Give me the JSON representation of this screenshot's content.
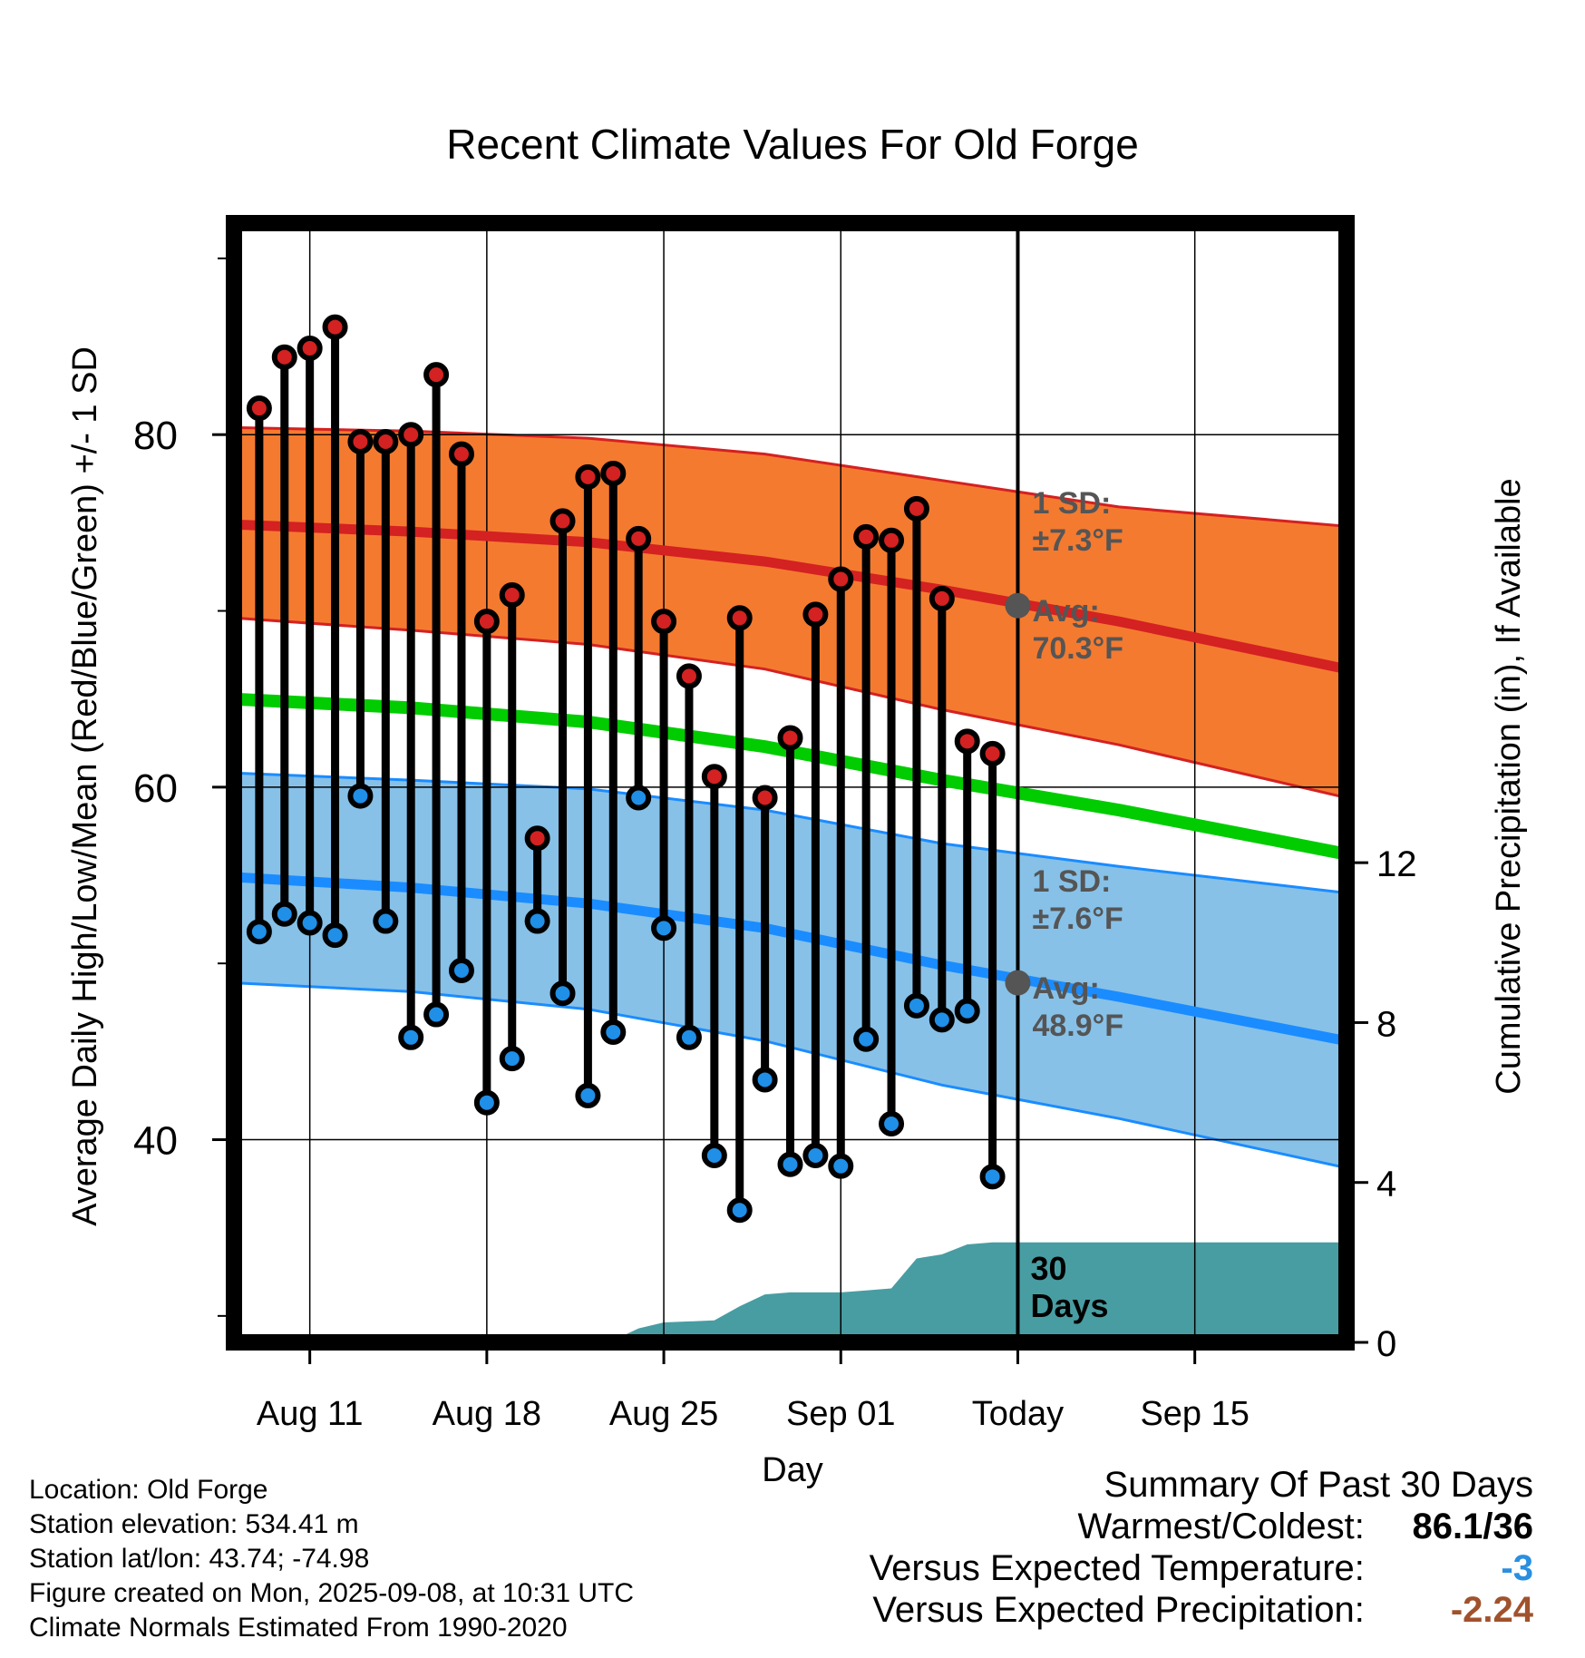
{
  "chart_data": {
    "type": "line",
    "title": "Recent Climate Values For Old Forge",
    "xlabel": "Day",
    "ylabel": "Average Daily High/Low/Mean (Red/Blue/Green) +/- 1 SD",
    "y2label": "Cumulative Precipitation (in), If Available",
    "x_start": "2025-08-08",
    "x_end": "2025-09-21",
    "today": "2025-09-08",
    "ylim": [
      28.5,
      92
    ],
    "y2lim": [
      0,
      28
    ],
    "x_tick_labels": [
      {
        "date": "2025-08-11",
        "label": "Aug 11"
      },
      {
        "date": "2025-08-18",
        "label": "Aug 18"
      },
      {
        "date": "2025-08-25",
        "label": "Aug 25"
      },
      {
        "date": "2025-09-01",
        "label": "Sep 01"
      },
      {
        "date": "2025-09-08",
        "label": "Today"
      },
      {
        "date": "2025-09-15",
        "label": "Sep 15"
      }
    ],
    "y_ticks": [
      40,
      60,
      80
    ],
    "y_minor_ticks": [
      30,
      50,
      70,
      90
    ],
    "y2_ticks": [
      0,
      4,
      8,
      12
    ],
    "grid": true,
    "normals": {
      "x": [
        "2025-08-08",
        "2025-08-15",
        "2025-08-22",
        "2025-08-29",
        "2025-09-05",
        "2025-09-12",
        "2025-09-21"
      ],
      "high_mean": [
        74.9,
        74.5,
        73.9,
        72.8,
        71.2,
        69.4,
        66.7
      ],
      "high_upper": [
        80.4,
        80.2,
        79.8,
        78.9,
        77.4,
        75.9,
        74.8
      ],
      "high_lower": [
        69.6,
        68.9,
        68.1,
        66.7,
        64.4,
        62.4,
        59.4
      ],
      "mean": [
        65.0,
        64.5,
        63.7,
        62.3,
        60.4,
        58.7,
        56.2
      ],
      "low_mean": [
        54.9,
        54.3,
        53.4,
        52.0,
        49.9,
        48.1,
        45.6
      ],
      "low_upper": [
        60.8,
        60.4,
        59.9,
        58.7,
        56.8,
        55.5,
        54.0
      ],
      "low_lower": [
        48.9,
        48.4,
        47.4,
        45.6,
        43.1,
        41.2,
        38.4
      ]
    },
    "observations": {
      "x": [
        "2025-08-09",
        "2025-08-10",
        "2025-08-11",
        "2025-08-12",
        "2025-08-13",
        "2025-08-14",
        "2025-08-15",
        "2025-08-16",
        "2025-08-17",
        "2025-08-18",
        "2025-08-19",
        "2025-08-20",
        "2025-08-21",
        "2025-08-22",
        "2025-08-23",
        "2025-08-24",
        "2025-08-25",
        "2025-08-26",
        "2025-08-27",
        "2025-08-28",
        "2025-08-29",
        "2025-08-30",
        "2025-08-31",
        "2025-09-01",
        "2025-09-02",
        "2025-09-03",
        "2025-09-04",
        "2025-09-05",
        "2025-09-06",
        "2025-09-07"
      ],
      "high": [
        81.5,
        84.4,
        84.9,
        86.1,
        79.6,
        79.6,
        80.0,
        83.4,
        78.9,
        69.4,
        70.9,
        57.1,
        75.1,
        77.6,
        77.8,
        74.1,
        69.4,
        66.3,
        60.6,
        69.6,
        59.4,
        62.8,
        69.8,
        71.8,
        74.2,
        74.0,
        75.8,
        70.7,
        62.6,
        61.9
      ],
      "low": [
        51.8,
        52.8,
        52.3,
        51.6,
        59.5,
        52.4,
        45.8,
        47.1,
        49.6,
        42.1,
        44.6,
        52.4,
        48.3,
        42.5,
        46.1,
        59.4,
        52.0,
        45.8,
        39.1,
        36.0,
        43.4,
        38.6,
        39.1,
        38.5,
        45.7,
        40.9,
        47.6,
        46.8,
        47.3,
        37.9
      ]
    },
    "precipitation": {
      "x": [
        "2025-08-08",
        "2025-08-20",
        "2025-08-23",
        "2025-08-24",
        "2025-08-25",
        "2025-08-27",
        "2025-08-28",
        "2025-08-29",
        "2025-08-30",
        "2025-09-01",
        "2025-09-02",
        "2025-09-03",
        "2025-09-04",
        "2025-09-05",
        "2025-09-06",
        "2025-09-07",
        "2025-09-21"
      ],
      "cumulative": [
        0,
        0.05,
        0.05,
        0.35,
        0.5,
        0.55,
        0.9,
        1.2,
        1.25,
        1.25,
        1.3,
        1.35,
        2.1,
        2.2,
        2.45,
        2.5,
        2.5
      ]
    },
    "annotations": {
      "high_sd_label": "1 SD:",
      "high_sd_value": "±7.3°F",
      "high_avg_label": "Avg:",
      "high_avg_value": "70.3°F",
      "high_avg_point": 70.3,
      "low_sd_label": "1 SD:",
      "low_sd_value": "±7.6°F",
      "low_avg_label": "Avg:",
      "low_avg_value": "48.9°F",
      "low_avg_point": 48.9,
      "period_label_1": "30",
      "period_label_2": "Days"
    },
    "colors": {
      "high_band": "#f47a30",
      "high_line": "#d42121",
      "mean_line": "#00cc00",
      "low_band": "#87c1e8",
      "low_line": "#1a8cff",
      "precip": "#489da2",
      "high_dot": "#d42121",
      "low_dot": "#1f8fe8",
      "annotation": "#555555"
    }
  },
  "info": {
    "location": "Location: Old Forge",
    "elevation": "Station elevation: 534.41 m",
    "latlon": "Station lat/lon: 43.74; -74.98",
    "created": "Figure created on Mon, 2025-09-08, at 10:31 UTC",
    "normals": "Climate Normals Estimated From 1990-2020"
  },
  "summary": {
    "title": "Summary Of Past 30 Days",
    "warm_cold_label": "Warmest/Coldest:",
    "warm_cold_value": "86.1/36",
    "temp_label": "Versus Expected Temperature:",
    "temp_value": "-3",
    "temp_color": "#2a8fe0",
    "precip_label": "Versus Expected Precipitation:",
    "precip_value": "-2.24",
    "precip_color": "#a0522d"
  }
}
